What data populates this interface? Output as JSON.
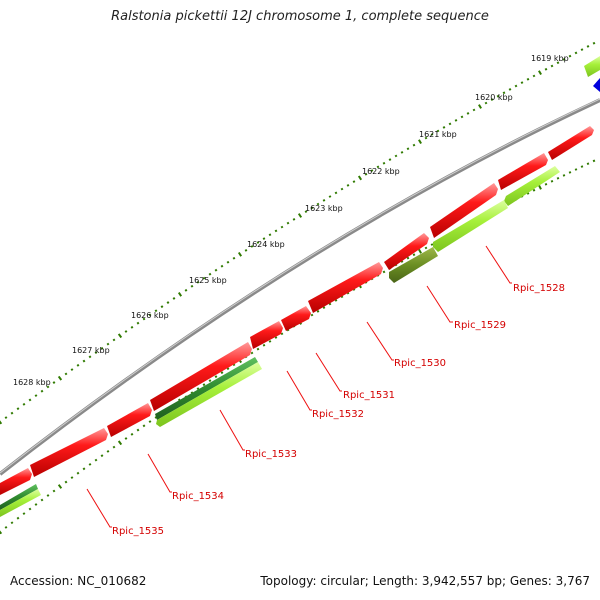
{
  "title": "Ralstonia pickettii 12J chromosome 1, complete sequence",
  "footer": {
    "accession": "Accession: NC_010682",
    "summary": "Topology: circular; Length: 3,942,557 bp; Genes: 3,767"
  },
  "colors": {
    "backbone": "#8a8a8a",
    "cds_forward": "#ee1111",
    "cds_reverse_light": "#a6f03a",
    "cds_reverse_dark": "#2f8a2f",
    "cds_reverse_olive": "#6b8e23",
    "other_feature": "#0000dd",
    "tick": "#2f7a00",
    "label_text": "#d40000"
  },
  "kbp_labels": [
    "1619 kbp",
    "1620 kbp",
    "1621 kbp",
    "1622 kbp",
    "1623 kbp",
    "1624 kbp",
    "1625 kbp",
    "1626 kbp",
    "1627 kbp",
    "1628 kbp"
  ],
  "gene_labels": [
    "Rpic_1528",
    "Rpic_1529",
    "Rpic_1530",
    "Rpic_1531",
    "Rpic_1532",
    "Rpic_1533",
    "Rpic_1534",
    "Rpic_1535"
  ]
}
